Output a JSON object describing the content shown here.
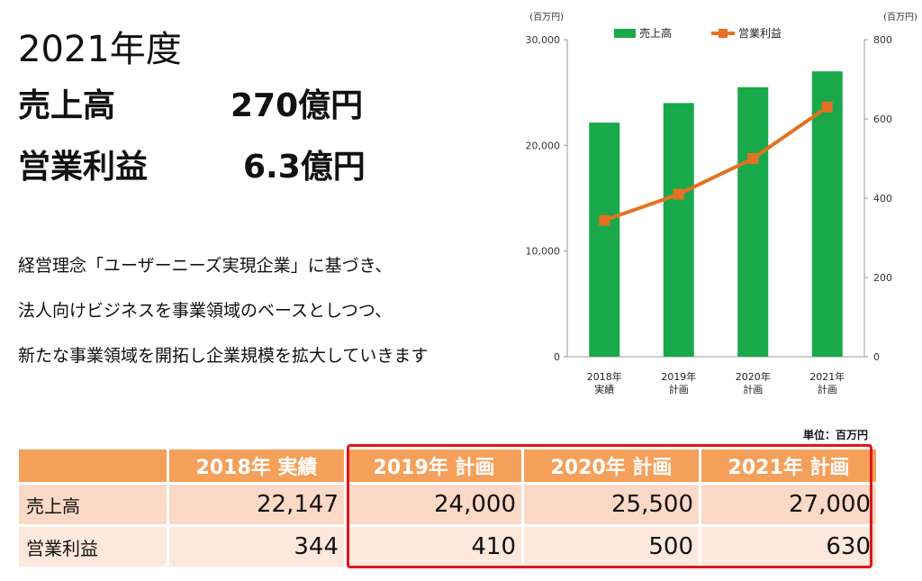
{
  "headline": {
    "year": "2021年度",
    "sales_label": "売上高",
    "sales_value": "270億円",
    "profit_label": "営業利益",
    "profit_value": "6.3億円"
  },
  "description": [
    "経営理念「ユーザーニーズ実現企業」に基づき、",
    "法人向けビジネスを事業領域のベースとしつつ、",
    "新たな事業領域を開拓し企業規模を拡大していきます"
  ],
  "chart_data": {
    "type": "bar",
    "categories": [
      [
        "2018年",
        "実績"
      ],
      [
        "2019年",
        "計画"
      ],
      [
        "2020年",
        "計画"
      ],
      [
        "2021年",
        "計画"
      ]
    ],
    "left_axis": {
      "unit": "(百万円)",
      "ylim": [
        0,
        30000
      ],
      "ticks": [
        "0",
        "10,000",
        "20,000",
        "30,000"
      ]
    },
    "right_axis": {
      "unit": "(百万円)",
      "ylim": [
        0,
        800
      ],
      "ticks": [
        "0",
        "200",
        "400",
        "600",
        "800"
      ]
    },
    "series": [
      {
        "name": "売上高",
        "kind": "bar",
        "axis": "left",
        "color": "#19a84a",
        "values": [
          22147,
          24000,
          25500,
          27000
        ]
      },
      {
        "name": "営業利益",
        "kind": "line",
        "axis": "right",
        "color": "#e37222",
        "values": [
          344,
          410,
          500,
          630
        ]
      }
    ],
    "legend": "top"
  },
  "table": {
    "unit_note": "単位：百万円",
    "headers": [
      "",
      "2018年 実績",
      "2019年 計画",
      "2020年 計画",
      "2021年 計画"
    ],
    "rows": [
      {
        "label": "売上高",
        "values": [
          "22,147",
          "24,000",
          "25,500",
          "27,000"
        ]
      },
      {
        "label": "営業利益",
        "values": [
          "344",
          "410",
          "500",
          "630"
        ]
      }
    ]
  }
}
